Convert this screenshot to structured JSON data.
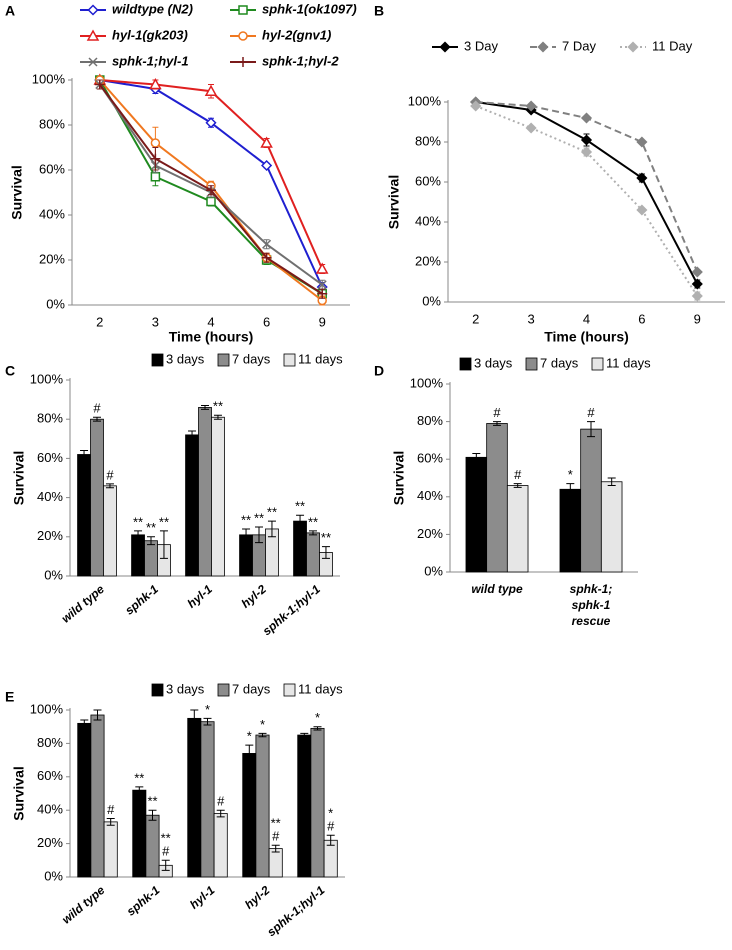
{
  "chart_data": [
    {
      "type": "line",
      "label": "A",
      "xlabel": "Time (hours)",
      "ylabel": "Survival",
      "categories": [
        "2",
        "3",
        "4",
        "6",
        "9"
      ],
      "ylim": [
        0,
        100
      ],
      "yticks": [
        {
          "value": 0,
          "label": "0%"
        },
        {
          "value": 20,
          "label": "20%"
        },
        {
          "value": 40,
          "label": "40%"
        },
        {
          "value": 60,
          "label": "60%"
        },
        {
          "value": 80,
          "label": "80%"
        },
        {
          "value": 100,
          "label": "100%"
        }
      ],
      "legend": "top",
      "italic_legend": true,
      "markers_filled": false,
      "series": [
        {
          "name": "wildtype (N2)",
          "color": "#1f1fd0",
          "marker": "diamond",
          "dash": "solid",
          "values": [
            100,
            96,
            81,
            62,
            8
          ],
          "errors": [
            1,
            2,
            2,
            1,
            2
          ]
        },
        {
          "name": "sphk-1(ok1097)",
          "color": "#1f8a1f",
          "marker": "square",
          "dash": "solid",
          "values": [
            100,
            57,
            46,
            20,
            5
          ],
          "errors": [
            1,
            4,
            2,
            2,
            2
          ]
        },
        {
          "name": "hyl-1(gk203)",
          "color": "#e02020",
          "marker": "triangle",
          "dash": "solid",
          "values": [
            100,
            98,
            95,
            72,
            16
          ],
          "errors": [
            1,
            2,
            3,
            2,
            2
          ]
        },
        {
          "name": "hyl-2(gnv1)",
          "color": "#f07820",
          "marker": "circle",
          "dash": "solid",
          "values": [
            100,
            72,
            53,
            21,
            2
          ],
          "errors": [
            1,
            7,
            2,
            2,
            2
          ]
        },
        {
          "name": "sphk-1;hyl-1",
          "color": "#707070",
          "marker": "x",
          "dash": "solid",
          "values": [
            98,
            62,
            50,
            27,
            9
          ],
          "errors": [
            2,
            3,
            2,
            2,
            2
          ]
        },
        {
          "name": "sphk-1;hyl-2",
          "color": "#7a1a1a",
          "marker": "plus",
          "dash": "solid",
          "values": [
            98,
            65,
            51,
            21,
            5
          ],
          "errors": [
            2,
            5,
            2,
            2,
            2
          ]
        }
      ]
    },
    {
      "type": "line",
      "label": "B",
      "xlabel": "Time (hours)",
      "ylabel": "Survival",
      "categories": [
        "2",
        "3",
        "4",
        "6",
        "9"
      ],
      "ylim": [
        0,
        100
      ],
      "yticks": [
        {
          "value": 0,
          "label": "0%"
        },
        {
          "value": 20,
          "label": "20%"
        },
        {
          "value": 40,
          "label": "40%"
        },
        {
          "value": 60,
          "label": "60%"
        },
        {
          "value": 80,
          "label": "80%"
        },
        {
          "value": 100,
          "label": "100%"
        }
      ],
      "legend": "top",
      "italic_legend": false,
      "markers_filled": true,
      "series": [
        {
          "name": "3 Day",
          "color": "#000000",
          "marker": "diamond",
          "dash": "solid",
          "values": [
            100,
            96,
            81,
            62,
            9
          ],
          "errors": [
            1,
            1,
            3,
            2,
            2
          ]
        },
        {
          "name": "7 Day",
          "color": "#808080",
          "marker": "diamond",
          "dash": "dashed",
          "values": [
            100,
            98,
            92,
            80,
            15
          ],
          "errors": [
            1,
            1,
            1,
            1,
            1
          ]
        },
        {
          "name": "11 Day",
          "color": "#b0b0b0",
          "marker": "diamond",
          "dash": "dotted",
          "values": [
            98,
            87,
            75,
            46,
            3
          ],
          "errors": [
            1,
            1,
            2,
            1,
            2
          ]
        }
      ]
    },
    {
      "type": "bar",
      "label": "C",
      "ylabel": "Survival",
      "categories": [
        "wild type",
        "sphk-1",
        "hyl-1",
        "hyl-2",
        "sphk-1;hyl-1"
      ],
      "ylim": [
        0,
        100
      ],
      "yticks": [
        {
          "value": 0,
          "label": "0%"
        },
        {
          "value": 20,
          "label": "20%"
        },
        {
          "value": 40,
          "label": "40%"
        },
        {
          "value": 60,
          "label": "60%"
        },
        {
          "value": 80,
          "label": "80%"
        },
        {
          "value": 100,
          "label": "100%"
        }
      ],
      "legend": "top",
      "xtick_rotation": -40,
      "series": [
        {
          "name": "3 days",
          "color": "#000000",
          "values": [
            62,
            21,
            72,
            21,
            28
          ],
          "errors": [
            2,
            2,
            2,
            3,
            3
          ],
          "annotations": [
            null,
            [
              "**"
            ],
            null,
            [
              "**"
            ],
            [
              "**"
            ]
          ]
        },
        {
          "name": "7 days",
          "color": "#8c8c8c",
          "values": [
            80,
            18,
            86,
            21,
            22
          ],
          "errors": [
            1,
            2,
            1,
            4,
            1
          ],
          "annotations": [
            [
              "#"
            ],
            [
              "**"
            ],
            null,
            [
              "**"
            ],
            [
              "**"
            ]
          ]
        },
        {
          "name": "11 days",
          "color": "#e6e6e6",
          "values": [
            46,
            16,
            81,
            24,
            12
          ],
          "errors": [
            1,
            7,
            1,
            4,
            3
          ],
          "annotations": [
            [
              "#"
            ],
            [
              "**"
            ],
            [
              "**"
            ],
            [
              "**"
            ],
            [
              "**"
            ]
          ]
        }
      ]
    },
    {
      "type": "bar",
      "label": "D",
      "ylabel": "Survival",
      "categories": [
        [
          "wild type"
        ],
        [
          "sphk-1;",
          "sphk-1",
          "rescue"
        ]
      ],
      "ylim": [
        0,
        100
      ],
      "yticks": [
        {
          "value": 0,
          "label": "0%"
        },
        {
          "value": 20,
          "label": "20%"
        },
        {
          "value": 40,
          "label": "40%"
        },
        {
          "value": 60,
          "label": "60%"
        },
        {
          "value": 80,
          "label": "80%"
        },
        {
          "value": 100,
          "label": "100%"
        }
      ],
      "legend": "top",
      "xtick_rotation": 0,
      "series": [
        {
          "name": "3 days",
          "color": "#000000",
          "values": [
            61,
            44
          ],
          "errors": [
            2,
            3
          ],
          "annotations": [
            null,
            [
              "*"
            ]
          ]
        },
        {
          "name": "7 days",
          "color": "#8c8c8c",
          "values": [
            79,
            76
          ],
          "errors": [
            1,
            4
          ],
          "annotations": [
            [
              "#"
            ],
            [
              "#"
            ]
          ]
        },
        {
          "name": "11 days",
          "color": "#e6e6e6",
          "values": [
            46,
            48
          ],
          "errors": [
            1,
            2
          ],
          "annotations": [
            [
              "#"
            ],
            null
          ]
        }
      ]
    },
    {
      "type": "bar",
      "label": "E",
      "ylabel": "Survival",
      "categories": [
        "wild type",
        "sphk-1",
        "hyl-1",
        "hyl-2",
        "sphk-1;hyl-1"
      ],
      "ylim": [
        0,
        100
      ],
      "yticks": [
        {
          "value": 0,
          "label": "0%"
        },
        {
          "value": 20,
          "label": "20%"
        },
        {
          "value": 40,
          "label": "40%"
        },
        {
          "value": 60,
          "label": "60%"
        },
        {
          "value": 80,
          "label": "80%"
        },
        {
          "value": 100,
          "label": "100%"
        }
      ],
      "legend": "top",
      "xtick_rotation": -40,
      "series": [
        {
          "name": "3 days",
          "color": "#000000",
          "values": [
            92,
            52,
            95,
            74,
            85
          ],
          "errors": [
            2,
            2,
            5,
            5,
            1
          ],
          "annotations": [
            null,
            [
              "**"
            ],
            null,
            [
              "*"
            ],
            null
          ]
        },
        {
          "name": "7 days",
          "color": "#8c8c8c",
          "values": [
            97,
            37,
            93,
            85,
            89
          ],
          "errors": [
            3,
            3,
            2,
            1,
            1
          ],
          "annotations": [
            null,
            [
              "**"
            ],
            [
              "*"
            ],
            [
              "*"
            ],
            [
              "*"
            ]
          ]
        },
        {
          "name": "11 days",
          "color": "#e6e6e6",
          "values": [
            33,
            7,
            38,
            17,
            22
          ],
          "errors": [
            2,
            3,
            2,
            2,
            3
          ],
          "annotations": [
            [
              "#"
            ],
            [
              "#",
              "**"
            ],
            [
              "#"
            ],
            [
              "#",
              "**"
            ],
            [
              "#",
              "*"
            ]
          ]
        }
      ]
    }
  ]
}
